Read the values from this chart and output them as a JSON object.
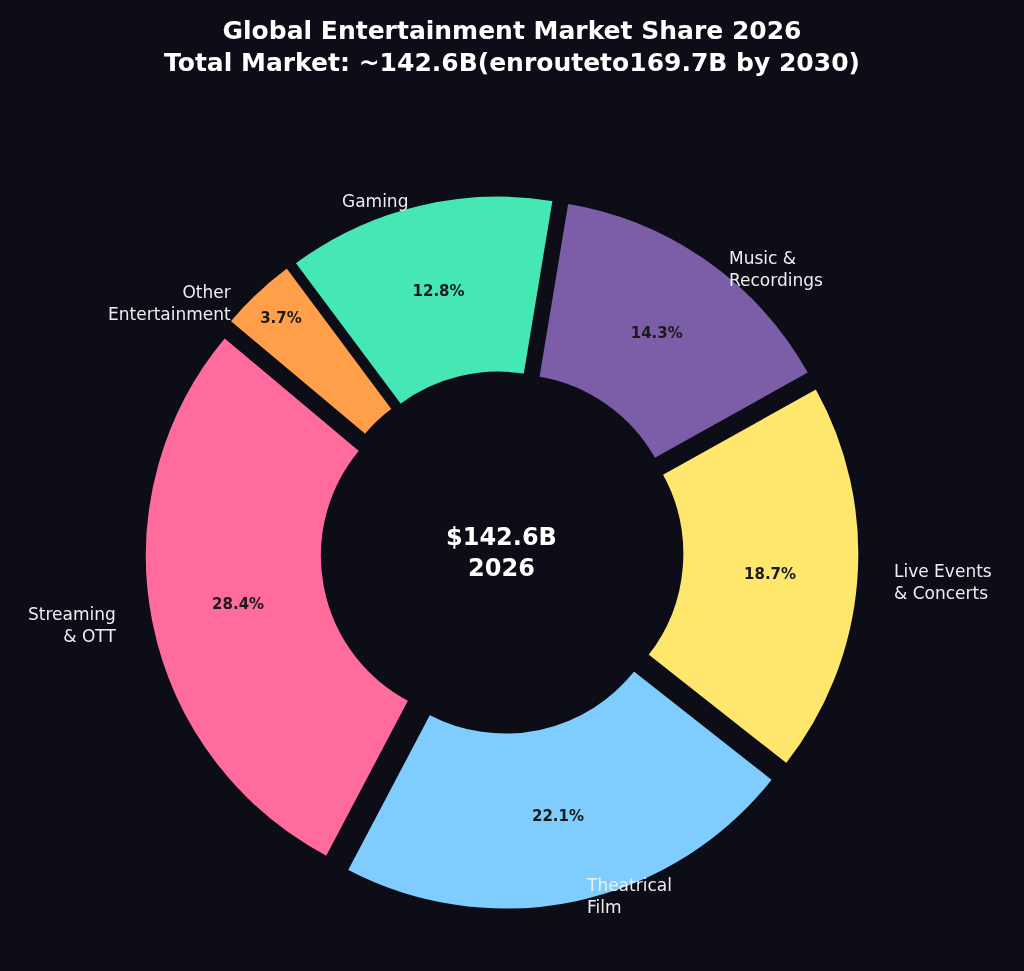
{
  "chart_data": {
    "type": "donut",
    "title": "Global Entertainment Market Share 2026",
    "subtitle": "Total Market: ~142.6B(enrouteto169.7B by 2030)",
    "categories": [
      "Streaming\n& OTT",
      "Theatrical\nFilm",
      "Live Events\n& Concerts",
      "Music &\nRecordings",
      "Gaming",
      "Other\nEntertainment"
    ],
    "values": [
      28.4,
      22.1,
      18.7,
      14.3,
      12.8,
      3.7
    ],
    "value_labels": [
      "28.4%",
      "22.1%",
      "18.7%",
      "14.3%",
      "12.8%",
      "3.7%"
    ],
    "colors": [
      "#ff6b9d",
      "#7fcdff",
      "#ffe66d",
      "#7b5ea7",
      "#45e8b4",
      "#ff9f4a"
    ],
    "annotations": [
      "$142.6B\n2026"
    ],
    "legend": false
  }
}
